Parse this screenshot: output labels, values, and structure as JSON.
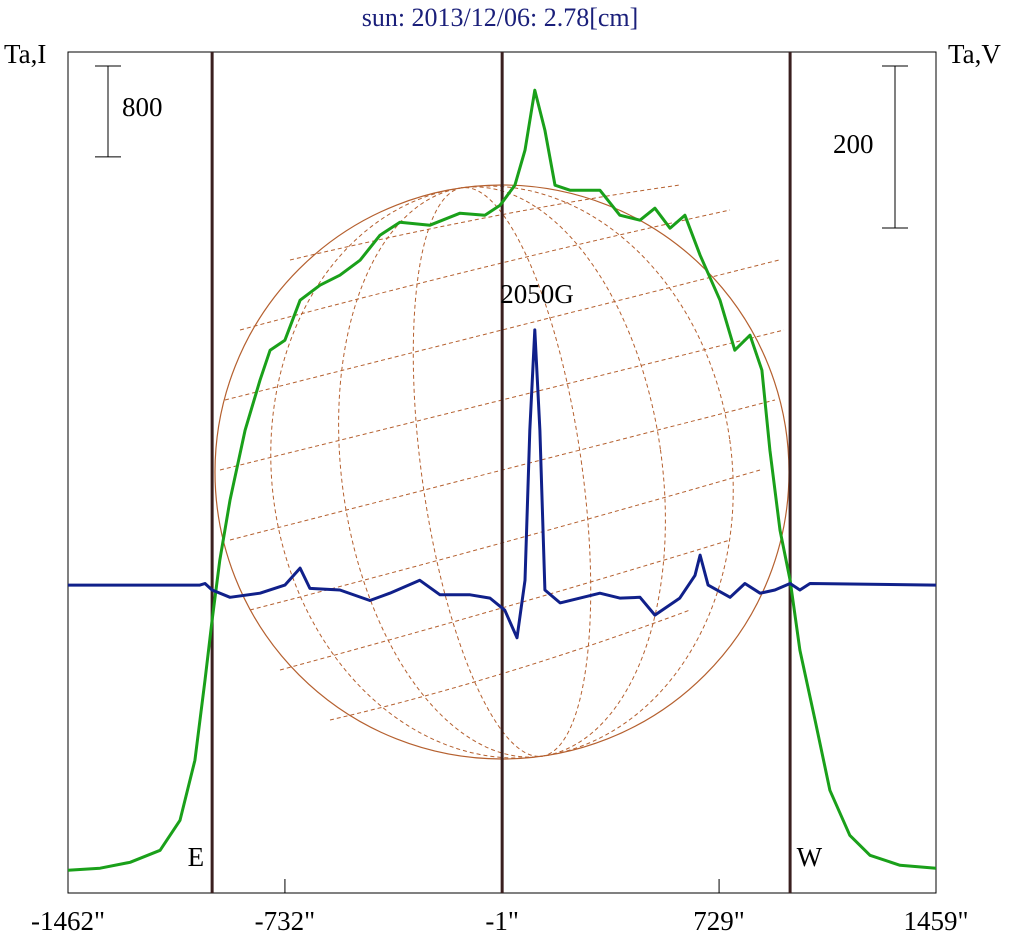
{
  "chart_data": {
    "type": "line",
    "title": "sun: 2013/12/06: 2.78[cm]",
    "y_label": "Ta,I",
    "y2_label": "Ta,V",
    "annotation": "2050G",
    "scale_bar_y": 800,
    "scale_bar_y2": 200,
    "xlim": [
      -1462,
      1459
    ],
    "xticks": [
      {
        "value": -1462,
        "label": "-1462\""
      },
      {
        "value": -732,
        "label": "-732\""
      },
      {
        "value": -1,
        "label": "-1\""
      },
      {
        "value": 729,
        "label": "729\""
      },
      {
        "value": 1459,
        "label": "1459\""
      }
    ],
    "ylim": [
      -200,
      7200
    ],
    "y2lim": [
      -380,
      658
    ],
    "vlines": [
      {
        "x": -977,
        "label": "E"
      },
      {
        "x": -1
      },
      {
        "x": 968,
        "label": "W"
      }
    ],
    "vline_color": "#3a1f1f",
    "series": [
      {
        "name": "I",
        "color": "#1aa01a",
        "x": [
          -1462,
          -1354,
          -1253,
          -1152,
          -1085,
          -1035,
          -1001,
          -977,
          -951,
          -917,
          -866,
          -816,
          -782,
          -732,
          -681,
          -614,
          -547,
          -479,
          -412,
          -345,
          -244,
          -143,
          -59,
          -8,
          42,
          76,
          109,
          143,
          177,
          227,
          328,
          395,
          463,
          513,
          564,
          614,
          665,
          732,
          782,
          833,
          873,
          900,
          934,
          968,
          1001,
          1052,
          1102,
          1169,
          1237,
          1338,
          1459
        ],
        "values": [
          0,
          18,
          70,
          176,
          440,
          968,
          1672,
          2200,
          2728,
          3256,
          3872,
          4312,
          4576,
          4664,
          5016,
          5148,
          5236,
          5368,
          5588,
          5702,
          5676,
          5782,
          5764,
          5852,
          6028,
          6336,
          6864,
          6512,
          6028,
          5984,
          5984,
          5764,
          5720,
          5826,
          5650,
          5764,
          5412,
          5016,
          4576,
          4708,
          4400,
          3696,
          2992,
          2552,
          1936,
          1320,
          704,
          308,
          132,
          44,
          18
        ]
      },
      {
        "name": "V",
        "color": "#10208a",
        "axis": "y2",
        "x": [
          -1462,
          -1085,
          -1018,
          -1001,
          -977,
          -917,
          -816,
          -732,
          -681,
          -648,
          -547,
          -446,
          -379,
          -278,
          -210,
          -109,
          -42,
          8,
          49,
          76,
          92,
          109,
          126,
          143,
          194,
          261,
          328,
          395,
          463,
          513,
          597,
          648,
          665,
          692,
          766,
          816,
          867,
          917,
          968,
          1001,
          1035,
          1459
        ],
        "values": [
          0,
          0,
          0,
          2,
          -6,
          -15,
          -10,
          0,
          21,
          -4,
          -6,
          -19,
          -10,
          6,
          -12,
          -12,
          -16,
          -31,
          -65,
          6,
          191,
          315,
          191,
          -6,
          -22,
          -16,
          -10,
          -16,
          -15,
          -37,
          -16,
          12,
          37,
          0,
          -15,
          2,
          -10,
          -6,
          2,
          -6,
          2,
          0
        ]
      }
    ]
  }
}
